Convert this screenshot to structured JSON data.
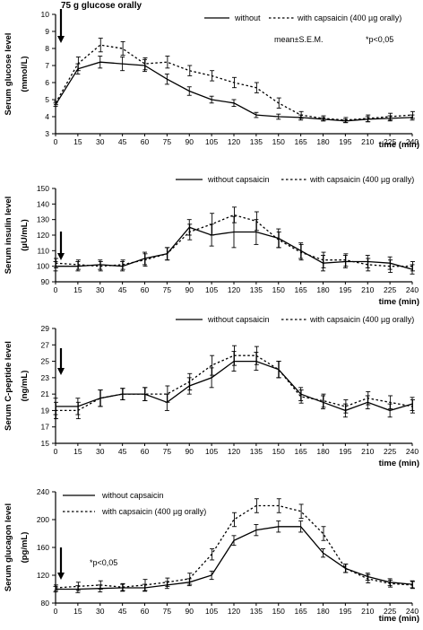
{
  "chart_data": [
    {
      "type": "line",
      "id": "glucose",
      "ylabel": "Serum glucose level",
      "yunit": "(mmol/L)",
      "xlabel": "time (min)",
      "x": [
        0,
        15,
        30,
        45,
        60,
        75,
        90,
        105,
        120,
        135,
        150,
        165,
        180,
        195,
        210,
        225,
        240
      ],
      "xticks": [
        0,
        15,
        30,
        45,
        60,
        75,
        90,
        105,
        120,
        135,
        150,
        165,
        180,
        195,
        210,
        225,
        240
      ],
      "ylim": [
        3,
        10
      ],
      "yticks": [
        3,
        4,
        5,
        6,
        7,
        8,
        9,
        10
      ],
      "series": [
        {
          "name": "without",
          "style": "solid",
          "values": [
            4.7,
            6.8,
            7.2,
            7.1,
            7.0,
            6.2,
            5.5,
            5.0,
            4.8,
            4.1,
            4.0,
            3.95,
            3.85,
            3.75,
            3.85,
            3.9,
            3.95
          ],
          "errors": [
            0.1,
            0.3,
            0.35,
            0.4,
            0.35,
            0.3,
            0.25,
            0.2,
            0.2,
            0.15,
            0.15,
            0.15,
            0.1,
            0.1,
            0.15,
            0.15,
            0.15
          ]
        },
        {
          "name": "with capsaicin (400 µg orally)",
          "style": "dotted",
          "values": [
            4.8,
            7.1,
            8.2,
            8.0,
            7.1,
            7.2,
            6.7,
            6.4,
            6.0,
            5.7,
            4.8,
            4.1,
            3.9,
            3.8,
            3.9,
            4.0,
            4.1
          ],
          "errors": [
            0.1,
            0.4,
            0.4,
            0.4,
            0.35,
            0.35,
            0.3,
            0.3,
            0.3,
            0.3,
            0.3,
            0.2,
            0.15,
            0.15,
            0.2,
            0.2,
            0.2
          ]
        }
      ],
      "significance_x": [
        30,
        45,
        75,
        90,
        105,
        120,
        135,
        150
      ],
      "marker": "*",
      "arrow_label": "75 g glucose orally",
      "annotations": [
        "mean±S.E.M.",
        "*p<0,05"
      ]
    },
    {
      "type": "line",
      "id": "insulin",
      "ylabel": "Serum insulin level",
      "yunit": "(µU/mL)",
      "xlabel": "time (min)",
      "x": [
        0,
        15,
        30,
        45,
        60,
        75,
        90,
        105,
        120,
        135,
        150,
        165,
        180,
        195,
        210,
        225,
        240
      ],
      "xticks": [
        0,
        15,
        30,
        45,
        60,
        75,
        90,
        105,
        120,
        135,
        150,
        165,
        180,
        195,
        210,
        225,
        240
      ],
      "ylim": [
        90,
        150
      ],
      "yticks": [
        90,
        100,
        110,
        120,
        130,
        140,
        150
      ],
      "series": [
        {
          "name": "without capsaicin",
          "style": "solid",
          "values": [
            100,
            100,
            101,
            100,
            105,
            108,
            125,
            120,
            122,
            122,
            118,
            110,
            102,
            103,
            103,
            102,
            98
          ],
          "errors": [
            3,
            3,
            3,
            3,
            4,
            4,
            5,
            7,
            10,
            8,
            6,
            5,
            5,
            4,
            4,
            4,
            3
          ]
        },
        {
          "name": "with capsaicin (400 µg orally)",
          "style": "dotted",
          "values": [
            102,
            101,
            100,
            101,
            104,
            108,
            122,
            127,
            133,
            129,
            117,
            109,
            104,
            104,
            101,
            100,
            100
          ],
          "errors": [
            3,
            3,
            3,
            3,
            4,
            4,
            5,
            7,
            5,
            6,
            5,
            5,
            5,
            4,
            4,
            4,
            3
          ]
        }
      ]
    },
    {
      "type": "line",
      "id": "c-peptide",
      "ylabel": "Serum C-peptide level",
      "yunit": "(ng/mL)",
      "xlabel": "time (min)",
      "x": [
        0,
        15,
        30,
        45,
        60,
        75,
        90,
        105,
        120,
        135,
        150,
        165,
        180,
        195,
        210,
        225,
        240
      ],
      "xticks": [
        0,
        15,
        30,
        45,
        60,
        75,
        90,
        105,
        120,
        135,
        150,
        165,
        180,
        195,
        210,
        225,
        240
      ],
      "ylim": [
        15,
        29
      ],
      "yticks": [
        15,
        17,
        19,
        21,
        23,
        25,
        27,
        29
      ],
      "series": [
        {
          "name": "without capsaicin",
          "style": "solid",
          "values": [
            19.5,
            19.5,
            20.5,
            21,
            21,
            20,
            22,
            23,
            25,
            25,
            24,
            21,
            20,
            19,
            20,
            19,
            19.8
          ],
          "errors": [
            1,
            1,
            1,
            0.7,
            0.8,
            1,
            1,
            1.2,
            1.2,
            1.1,
            1,
            0.8,
            0.8,
            0.8,
            0.8,
            0.8,
            0.8
          ]
        },
        {
          "name": "with capsaicin (400 µg orally)",
          "style": "dotted",
          "values": [
            19,
            19,
            20.5,
            21,
            21,
            21,
            22.5,
            24.5,
            25.7,
            25.7,
            24,
            20.7,
            20.2,
            19.5,
            20.5,
            20,
            19.5
          ],
          "errors": [
            1,
            1,
            1,
            0.7,
            0.8,
            1,
            1,
            1.2,
            1.2,
            1.1,
            1,
            0.8,
            0.8,
            0.8,
            0.8,
            0.8,
            0.8
          ]
        }
      ]
    },
    {
      "type": "line",
      "id": "glucagon",
      "ylabel": "Serum glucagon level",
      "yunit": "(pg/mL)",
      "xlabel": "time (min)",
      "x": [
        0,
        15,
        30,
        45,
        60,
        75,
        90,
        105,
        120,
        135,
        150,
        165,
        180,
        195,
        210,
        225,
        240
      ],
      "xticks": [
        0,
        15,
        30,
        45,
        60,
        75,
        90,
        105,
        120,
        135,
        150,
        165,
        180,
        195,
        210,
        225,
        240
      ],
      "ylim": [
        80,
        240
      ],
      "yticks": [
        80,
        120,
        160,
        200,
        240
      ],
      "series": [
        {
          "name": "without capsaicin",
          "style": "solid",
          "values": [
            100,
            100,
            101,
            102,
            102,
            106,
            110,
            120,
            170,
            185,
            190,
            190,
            152,
            130,
            118,
            110,
            107
          ],
          "errors": [
            4,
            5,
            5,
            5,
            5,
            5,
            5,
            6,
            7,
            8,
            8,
            8,
            6,
            6,
            5,
            5,
            5
          ]
        },
        {
          "name": "with capsaicin (400 µg orally)",
          "style": "dotted",
          "values": [
            102,
            104,
            106,
            103,
            106,
            110,
            115,
            150,
            200,
            220,
            220,
            212,
            180,
            130,
            115,
            108,
            106
          ],
          "errors": [
            4,
            6,
            6,
            5,
            8,
            6,
            8,
            8,
            10,
            10,
            10,
            10,
            10,
            6,
            6,
            5,
            5
          ]
        }
      ],
      "significance_x": [
        105,
        120,
        135,
        150,
        165,
        180
      ],
      "marker": "*",
      "annotations": [
        "*p<0,05"
      ]
    }
  ]
}
